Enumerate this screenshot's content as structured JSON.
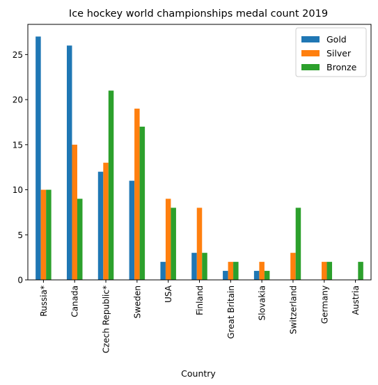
{
  "chart_data": {
    "type": "bar",
    "title": "Ice hockey world championships medal count 2019",
    "xlabel": "Country",
    "ylabel": "",
    "ylim": [
      0,
      28.35
    ],
    "yticks": [
      0,
      5,
      10,
      15,
      20,
      25
    ],
    "legend_position": "top-right",
    "categories": [
      "Russia*",
      "Canada",
      "Czech Republic*",
      "Sweden",
      "USA",
      "Finland",
      "Great Britain",
      "Slovakia",
      "Switzerland",
      "Germany",
      "Austria"
    ],
    "series": [
      {
        "name": "Gold",
        "color": "#1f77b4",
        "values": [
          27,
          26,
          12,
          11,
          2,
          3,
          1,
          1,
          0,
          0,
          0
        ]
      },
      {
        "name": "Silver",
        "color": "#ff7f0e",
        "values": [
          10,
          15,
          13,
          19,
          9,
          8,
          2,
          2,
          3,
          2,
          0
        ]
      },
      {
        "name": "Bronze",
        "color": "#2ca02c",
        "values": [
          10,
          9,
          21,
          17,
          8,
          3,
          2,
          1,
          8,
          2,
          2
        ]
      }
    ]
  }
}
